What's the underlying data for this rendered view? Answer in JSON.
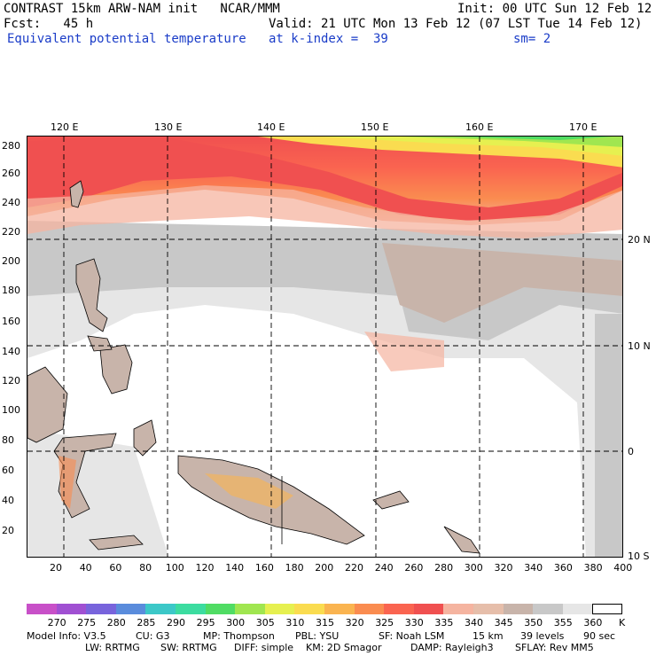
{
  "header": {
    "line1_left": "CONTRAST 15km ARW-NAM init   NCAR/MMM",
    "line1_right": "Init: 00 UTC Sun 12 Feb 12",
    "line2_left": "Fcst:   45 h",
    "line2_right": "Valid: 21 UTC Mon 13 Feb 12 (07 LST Tue 14 Feb 12)",
    "line3_left": "Equivalent potential temperature",
    "line3_mid": "at k-index =  39",
    "line3_right": "sm= 2"
  },
  "axes": {
    "top_lon": [
      "120 E",
      "130 E",
      "140 E",
      "150 E",
      "160 E",
      "170 E"
    ],
    "right_lat": [
      "20 N",
      "10 N",
      "0",
      "10 S"
    ],
    "left_y": [
      "280",
      "260",
      "240",
      "220",
      "200",
      "180",
      "160",
      "140",
      "120",
      "100",
      "80",
      "60",
      "40",
      "20"
    ],
    "bottom_x": [
      "20",
      "40",
      "60",
      "80",
      "100",
      "120",
      "140",
      "160",
      "180",
      "200",
      "220",
      "240",
      "260",
      "280",
      "300",
      "320",
      "340",
      "360",
      "380",
      "400"
    ]
  },
  "colorbar": {
    "unit": "K",
    "labels": [
      "270",
      "275",
      "280",
      "285",
      "290",
      "295",
      "300",
      "305",
      "310",
      "315",
      "320",
      "325",
      "330",
      "335",
      "340",
      "345",
      "350",
      "355",
      "360"
    ],
    "colors": [
      "#c850c8",
      "#a050d2",
      "#7864dc",
      "#5a8cdc",
      "#3cc8c8",
      "#3cdca0",
      "#50dc64",
      "#a0e650",
      "#e6f050",
      "#fadc50",
      "#fab450",
      "#fa8c50",
      "#fa6450",
      "#f05050",
      "#f5b4a0",
      "#e6beaa",
      "#c8b4aa",
      "#c8c8c8",
      "#e6e6e6",
      "#ffffff"
    ]
  },
  "footer": {
    "row1": [
      "Model Info: V3.5",
      "CU: G3",
      "MP: Thompson",
      "PBL: YSU",
      "SF: Noah LSM",
      "15 km",
      "39 levels",
      "90 sec"
    ],
    "row2": [
      "LW: RRTMG",
      "SW: RRTMG",
      "DIFF: simple",
      "KM: 2D Smagor",
      "DAMP: Rayleigh3",
      "SFLAY: Rev MM5"
    ]
  }
}
